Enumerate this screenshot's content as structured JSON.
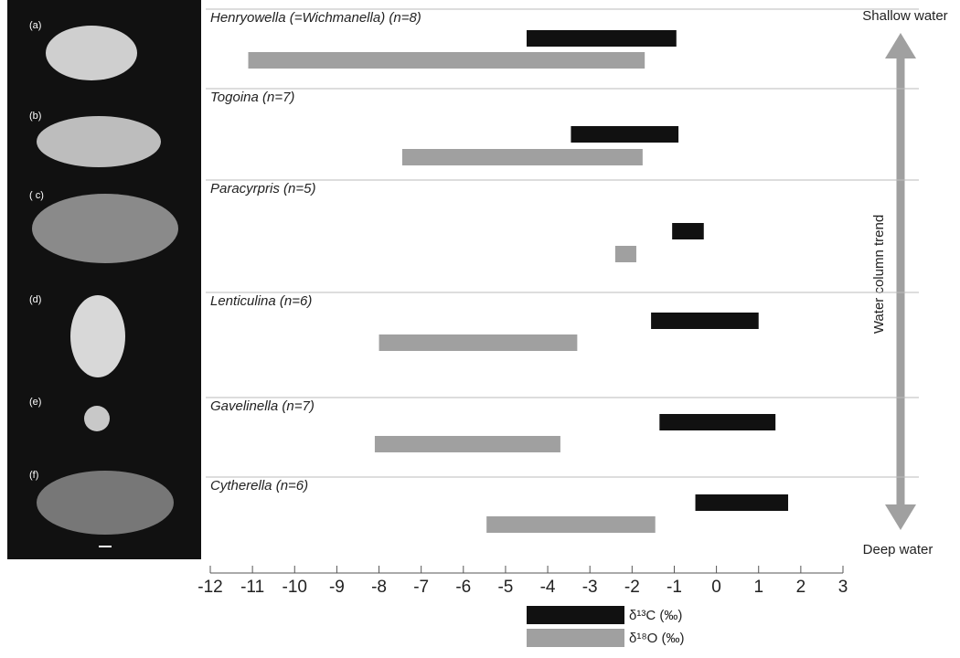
{
  "chart_data": {
    "type": "range",
    "categories": [
      "Henryowella (=Wichmanella)  (n=8)",
      "Togoina (n=7)",
      "Paracyrpris (n=5)",
      "Lenticulina (n=6)",
      "Gavelinella (n=7)",
      "Cytherella (n=6)"
    ],
    "series": [
      {
        "name": "δ¹³C (‰)",
        "color": "#111111",
        "values": [
          [
            -4.5,
            -0.95
          ],
          [
            -3.45,
            -0.9
          ],
          [
            -1.05,
            -0.3
          ],
          [
            -1.55,
            1.0
          ],
          [
            -1.35,
            1.4
          ],
          [
            -0.5,
            1.7
          ]
        ]
      },
      {
        "name": "δ¹⁸O (‰)",
        "color": "#a0a0a0",
        "values": [
          [
            -11.1,
            -1.7
          ],
          [
            -7.45,
            -1.75
          ],
          [
            -2.4,
            -1.9
          ],
          [
            -8.0,
            -3.3
          ],
          [
            -8.1,
            -3.7
          ],
          [
            -5.45,
            -1.45
          ]
        ]
      }
    ],
    "xlim": [
      -12,
      3
    ],
    "xticks": [
      -12,
      -11,
      -10,
      -9,
      -8,
      -7,
      -6,
      -5,
      -4,
      -3,
      -2,
      -1,
      0,
      1,
      2,
      3
    ],
    "annotations": {
      "top": "Shallow water",
      "bottom": "Deep water",
      "trend": "Water column trend"
    },
    "specimen_labels": [
      "(a)",
      "(b)",
      "( c)",
      "(d)",
      "(e)",
      "(f)"
    ]
  }
}
